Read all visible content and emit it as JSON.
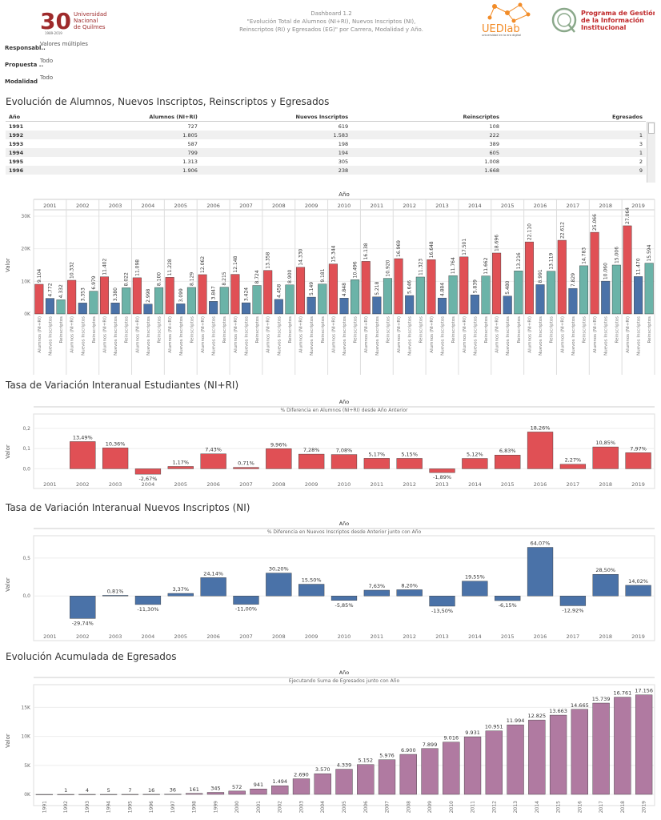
{
  "header": {
    "logo_number": "30",
    "logo_years": "1989-2019",
    "logo_lines": [
      "Universidad",
      "Nacional",
      "de Quilmes"
    ],
    "dashboard_title": "Dashboard 1.2",
    "dashboard_subtitle_lines": [
      "\"Evolución Total de Alumnos (NI+RI), Nuevos Inscriptos (NI),",
      "Reinscriptos (RI) y Egresados (EG)\" por Carrera, Modalidad y Año."
    ],
    "uedlab_text": "UEDlab",
    "uedlab_sub": "universidad en la era digital",
    "pgi_lines": [
      "Programa de Gestión",
      "de la Información",
      "Institucional"
    ]
  },
  "filters": [
    {
      "label": "Responsabl..",
      "value": "Valores múltiples"
    },
    {
      "label": "Propuesta ..",
      "value": "Todo"
    },
    {
      "label": "Modalidad",
      "value": "Todo"
    }
  ],
  "colors": {
    "alumnos": "#e05055",
    "nuevos": "#4a72a8",
    "reinscriptos": "#6bb3a8",
    "egresados": "#b07aa1",
    "ni_pct": "#4a72a8",
    "st_pct": "#e05055"
  },
  "section1": {
    "title": "Evolución de Alumnos, Nuevos Inscriptos, Reinscriptos y Egresados",
    "columns": [
      "Año",
      "Alumnos (NI+RI)",
      "Nuevos Inscriptos",
      "Reinscriptos",
      "Egresados"
    ],
    "rows": [
      [
        "1991",
        "727",
        "619",
        "108",
        ""
      ],
      [
        "1992",
        "1.805",
        "1.583",
        "222",
        "1"
      ],
      [
        "1993",
        "587",
        "198",
        "389",
        "3"
      ],
      [
        "1994",
        "799",
        "194",
        "605",
        "1"
      ],
      [
        "1995",
        "1.313",
        "305",
        "1.008",
        "2"
      ],
      [
        "1996",
        "1.906",
        "238",
        "1.668",
        "9"
      ]
    ]
  },
  "chart_data": [
    {
      "type": "bar",
      "title": "Año",
      "ylabel": "Valor",
      "ylim": [
        0,
        30000
      ],
      "yticks": [
        "0K",
        "10K",
        "20K",
        "30K"
      ],
      "categories": [
        "2001",
        "2002",
        "2003",
        "2004",
        "2005",
        "2006",
        "2007",
        "2008",
        "2009",
        "2010",
        "2011",
        "2012",
        "2013",
        "2014",
        "2015",
        "2016",
        "2017",
        "2018",
        "2019"
      ],
      "series_labels": [
        "Alumnos (NI+RI)",
        "Nuevos Inscriptos",
        "Reinscriptos"
      ],
      "series": [
        {
          "name": "Alumnos (NI+RI)",
          "values": [
            9104,
            10332,
            11402,
            11098,
            11228,
            12062,
            12148,
            13358,
            14330,
            15344,
            16138,
            16969,
            16648,
            17501,
            18696,
            22110,
            22612,
            25066,
            27064
          ]
        },
        {
          "name": "Nuevos Inscriptos",
          "values": [
            4772,
            3353,
            3380,
            2998,
            3099,
            3847,
            3424,
            4458,
            5149,
            4848,
            5218,
            5646,
            4884,
            5839,
            5480,
            8991,
            7829,
            10060,
            11470
          ]
        },
        {
          "name": "Reinscriptos",
          "values": [
            4332,
            6979,
            8022,
            8100,
            8129,
            8215,
            8724,
            8900,
            9181,
            10496,
            10920,
            11323,
            11764,
            11662,
            13216,
            13119,
            14783,
            15006,
            15594
          ]
        }
      ],
      "value_labels": [
        [
          "9.104",
          "10.332",
          "11.402",
          "11.098",
          "11.228",
          "12.062",
          "12.148",
          "13.358",
          "14.330",
          "15.344",
          "16.138",
          "16.969",
          "16.648",
          "17.501",
          "18.696",
          "22.110",
          "22.612",
          "25.066",
          "27.064"
        ],
        [
          "4.772",
          "3.353",
          "3.380",
          "2.998",
          "3.099",
          "3.847",
          "3.424",
          "4.458",
          "5.149",
          "4.848",
          "5.218",
          "5.646",
          "4.884",
          "5.839",
          "5.480",
          "8.991",
          "7.829",
          "10.060",
          "11.470"
        ],
        [
          "4.332",
          "6.979",
          "8.022",
          "8.100",
          "8.129",
          "8.215",
          "8.724",
          "8.900",
          "9.181",
          "10.496",
          "10.920",
          "11.323",
          "11.764",
          "11.662",
          "13.216",
          "13.119",
          "14.783",
          "15.006",
          "15.594"
        ]
      ]
    },
    {
      "type": "bar",
      "section_title": "Tasa de Variación Interanual Estudiantes (NI+RI)",
      "title": "Año",
      "subtitle": "% Diferencia en Alumnos (NI+RI) desde Año Anterior",
      "ylabel": "Valor",
      "ylim": [
        -0.05,
        0.22
      ],
      "yticks": [
        "0,0",
        "0,1",
        "0,2"
      ],
      "categories": [
        "2001",
        "2002",
        "2003",
        "2004",
        "2005",
        "2006",
        "2007",
        "2008",
        "2009",
        "2010",
        "2011",
        "2012",
        "2013",
        "2014",
        "2015",
        "2016",
        "2017",
        "2018",
        "2019"
      ],
      "values": [
        null,
        0.1349,
        0.1036,
        -0.0267,
        0.0117,
        0.0743,
        0.0071,
        0.0996,
        0.0728,
        0.0708,
        0.0517,
        0.0515,
        -0.0189,
        0.0512,
        0.0683,
        0.1826,
        0.0227,
        0.1085,
        0.0797
      ],
      "value_labels": [
        "",
        "13,49%",
        "10,36%",
        "-2,67%",
        "1,17%",
        "7,43%",
        "0,71%",
        "9,96%",
        "7,28%",
        "7,08%",
        "5,17%",
        "5,15%",
        "-1,89%",
        "5,12%",
        "6,83%",
        "18,26%",
        "2,27%",
        "10,85%",
        "7,97%"
      ]
    },
    {
      "type": "bar",
      "section_title": "Tasa de Variación Interanual Nuevos Inscriptos (NI)",
      "title": "Año",
      "subtitle": "% Diferencia en Nuevos Inscriptos desde Anterior junto con Año",
      "ylabel": "Valor",
      "ylim": [
        -0.42,
        0.72
      ],
      "yticks": [
        "0,0",
        "0,5"
      ],
      "categories": [
        "2001",
        "2002",
        "2003",
        "2004",
        "2005",
        "2006",
        "2007",
        "2008",
        "2009",
        "2010",
        "2011",
        "2012",
        "2013",
        "2014",
        "2015",
        "2016",
        "2017",
        "2018",
        "2019"
      ],
      "values": [
        null,
        -0.2974,
        0.0081,
        -0.113,
        0.0337,
        0.2414,
        -0.11,
        0.302,
        0.155,
        -0.0585,
        0.0763,
        0.082,
        -0.135,
        0.1955,
        -0.0615,
        0.6407,
        -0.1292,
        0.285,
        0.1402
      ],
      "value_labels": [
        "",
        "-29,74%",
        "0,81%",
        "-11,30%",
        "3,37%",
        "24,14%",
        "-11,00%",
        "30,20%",
        "15,50%",
        "-5,85%",
        "7,63%",
        "8,20%",
        "-13,50%",
        "19,55%",
        "-6,15%",
        "64,07%",
        "-12,92%",
        "28,50%",
        "14,02%"
      ]
    },
    {
      "type": "bar",
      "section_title": "Evolución Acumulada de Egresados",
      "title": "Año",
      "subtitle": "Ejecutando Suma de Egresados junto con Año",
      "ylabel": "Valor",
      "ylim": [
        0,
        18500
      ],
      "yticks": [
        "0K",
        "5K",
        "10K",
        "15K"
      ],
      "categories": [
        "1991",
        "1992",
        "1993",
        "1994",
        "1995",
        "1996",
        "1997",
        "1998",
        "1999",
        "2000",
        "2001",
        "2002",
        "2003",
        "2004",
        "2005",
        "2006",
        "2007",
        "2008",
        "2009",
        "2010",
        "2011",
        "2012",
        "2013",
        "2014",
        "2015",
        "2016",
        "2017",
        "2018",
        "2019"
      ],
      "values": [
        0,
        1,
        4,
        5,
        7,
        16,
        36,
        161,
        345,
        572,
        941,
        1494,
        2690,
        3570,
        4339,
        5152,
        5976,
        6900,
        7899,
        9016,
        9931,
        10951,
        11994,
        12825,
        13663,
        14665,
        15739,
        16761,
        17156
      ],
      "value_labels": [
        "",
        "1",
        "4",
        "5",
        "7",
        "16",
        "36",
        "161",
        "345",
        "572",
        "941",
        "1.494",
        "2.690",
        "3.570",
        "4.339",
        "5.152",
        "5.976",
        "6.900",
        "7.899",
        "9.016",
        "9.931",
        "10.951",
        "11.994",
        "12.825",
        "13.663",
        "14.665",
        "15.739",
        "16.761",
        "17.156"
      ]
    }
  ]
}
